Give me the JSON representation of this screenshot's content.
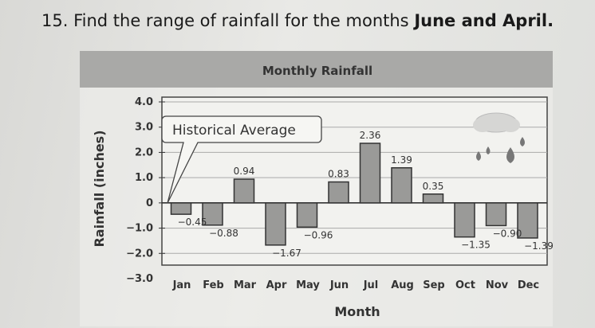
{
  "question": {
    "number": "15.",
    "text": "Find the range of rainfall for the months ",
    "bold": "June and April."
  },
  "chart_data": {
    "type": "bar",
    "title": "Monthly Rainfall",
    "xlabel": "Month",
    "ylabel": "Rainfall (inches)",
    "categories": [
      "Jan",
      "Feb",
      "Mar",
      "Apr",
      "May",
      "Jun",
      "Jul",
      "Aug",
      "Sep",
      "Oct",
      "Nov",
      "Dec"
    ],
    "values": [
      -0.45,
      -0.88,
      0.94,
      -1.67,
      -0.96,
      0.83,
      2.36,
      1.39,
      0.35,
      -1.35,
      -0.9,
      -1.39
    ],
    "value_labels": [
      "−0.45",
      "−0.88",
      "0.94",
      "−1.67",
      "−0.96",
      "0.83",
      "2.36",
      "1.39",
      "0.35",
      "−1.35",
      "−0.90",
      "−1.39"
    ],
    "ylim": [
      -3.0,
      4.0
    ],
    "yticks": [
      4.0,
      3.0,
      2.0,
      1.0,
      0,
      -1.0,
      -2.0,
      -3.0
    ],
    "ytick_labels": [
      "4.0",
      "3.0",
      "2.0",
      "1.0",
      "0",
      "−1.0",
      "−2.0",
      "−3.0"
    ],
    "baseline_label": "Historical Average",
    "grid": true,
    "bar_color": "#9a9a98",
    "header_color": "#a9a9a7"
  }
}
